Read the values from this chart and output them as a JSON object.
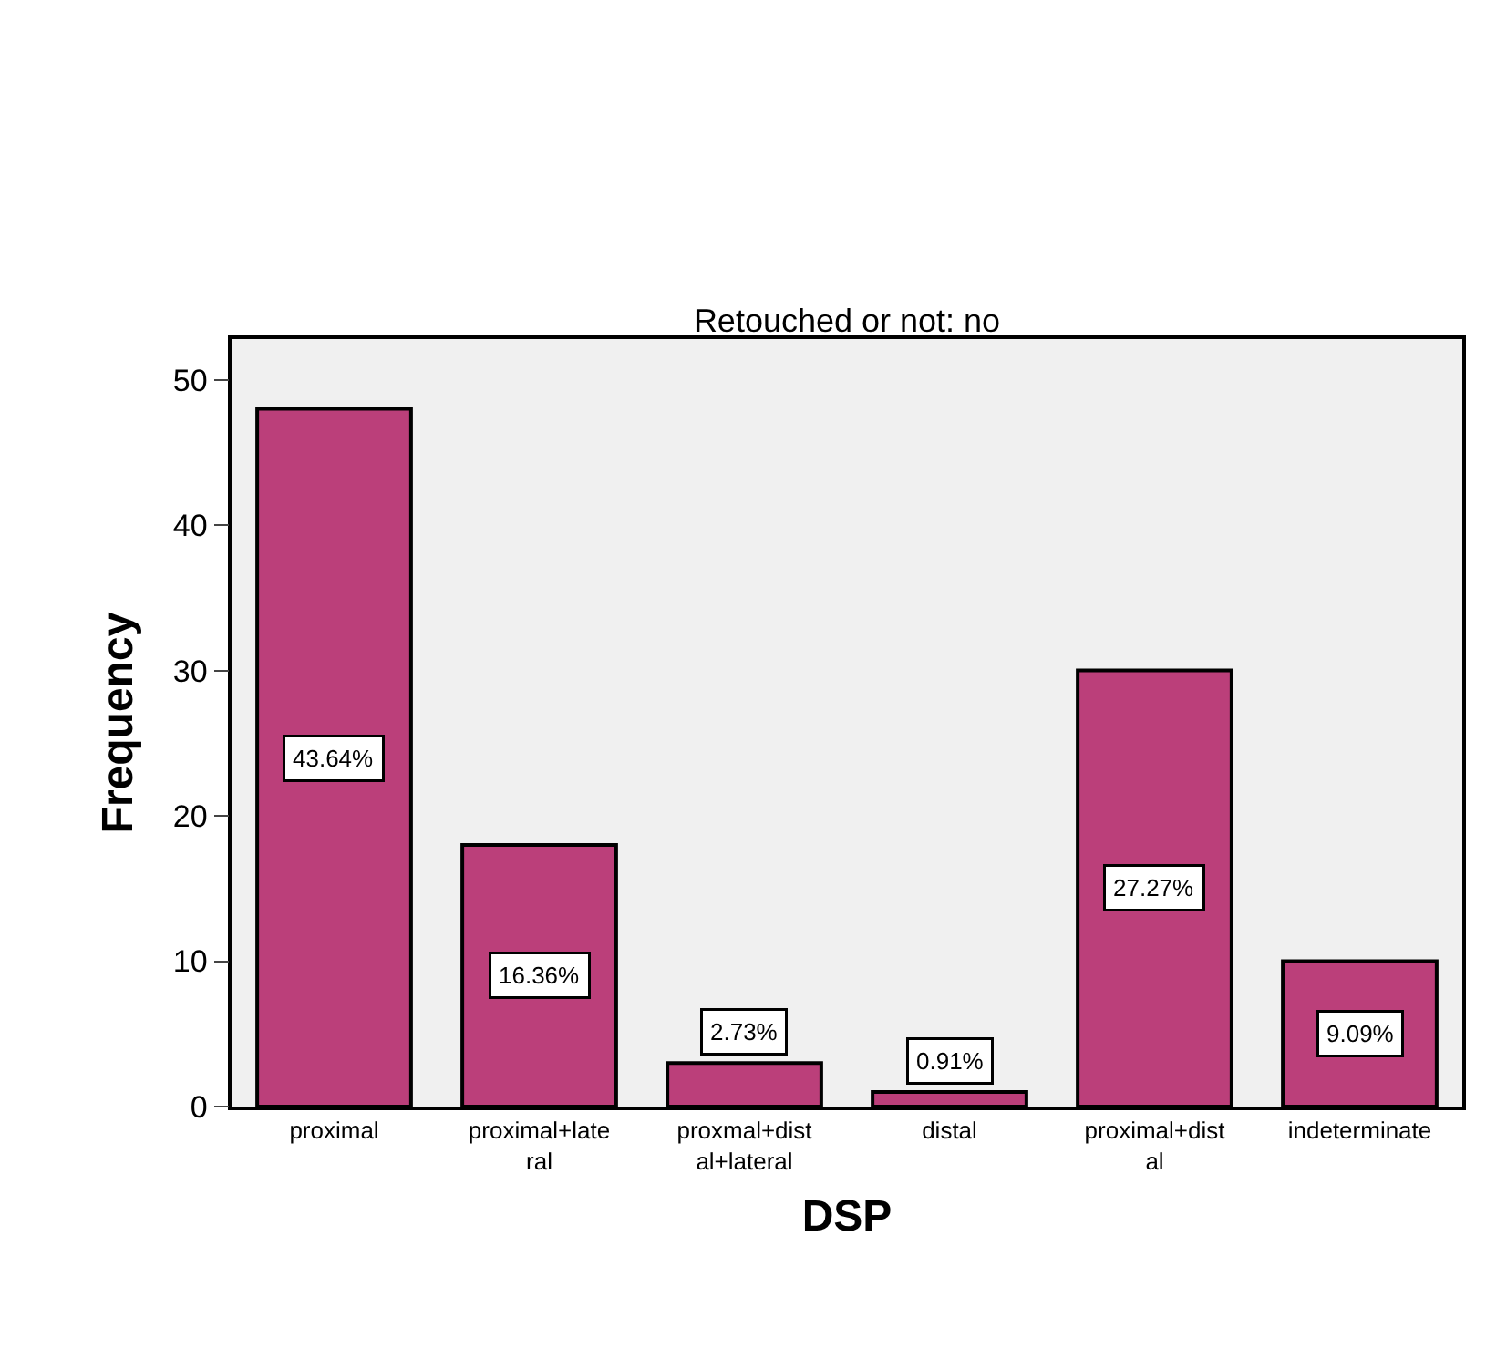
{
  "chart_data": {
    "type": "bar",
    "title": "Retouched or not: no",
    "xlabel": "DSP",
    "ylabel": "Frequency",
    "categories": [
      "proximal",
      "proximal+late\nral",
      "proxmal+dist\nal+lateral",
      "distal",
      "proximal+dist\nal",
      "indeterminate"
    ],
    "values": [
      48,
      18,
      3,
      1,
      30,
      10
    ],
    "annotations": [
      "43.64%",
      "16.36%",
      "2.73%",
      "0.91%",
      "27.27%",
      "9.09%"
    ],
    "color": "#bb3f7a",
    "ylim": [
      0,
      52.8
    ],
    "yticks": [
      0,
      10,
      20,
      30,
      40,
      50
    ],
    "grid": false,
    "legend": false
  }
}
